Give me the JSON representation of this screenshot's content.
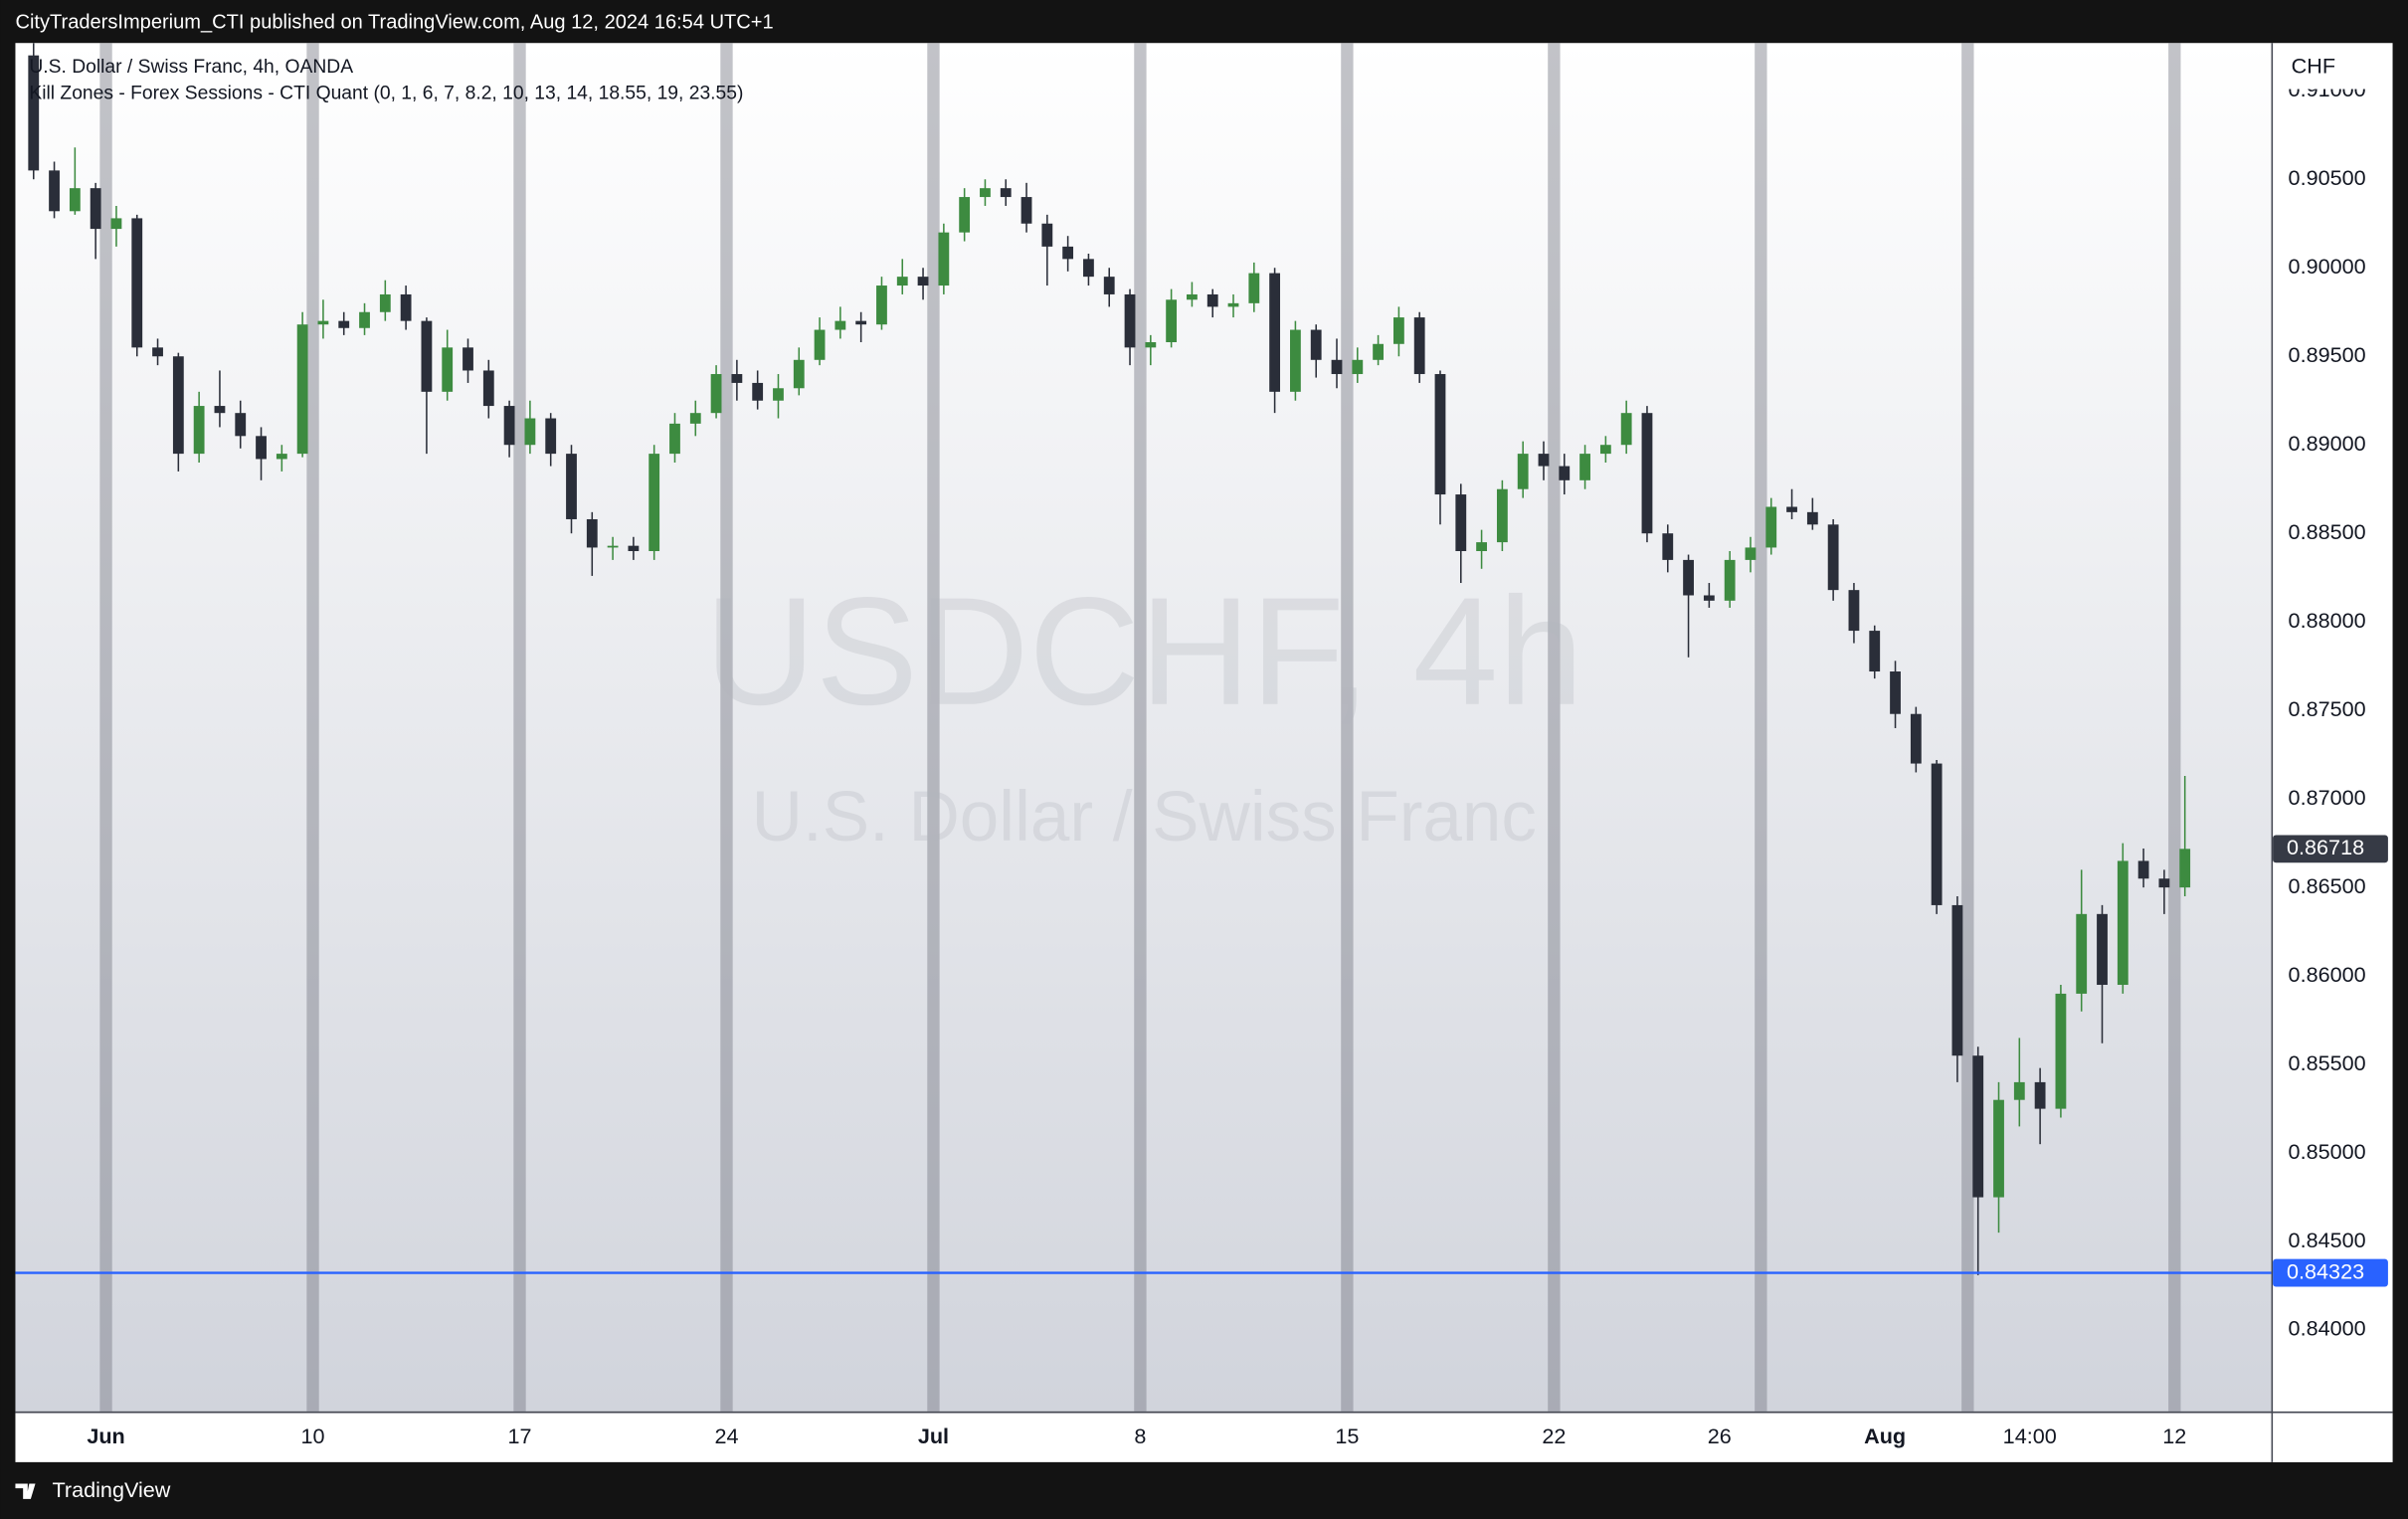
{
  "publisher": "CityTradersImperium_CTI published on TradingView.com, Aug 12, 2024 16:54 UTC+1",
  "branding": "TradingView",
  "chart_data": {
    "type": "candlestick",
    "legend": [
      "U.S. Dollar / Swiss Franc, 4h, OANDA",
      "Kill Zones - Forex Sessions - CTI Quant (0, 1, 6, 7, 8.2, 10, 13, 14, 18.55, 19, 23.55)"
    ],
    "watermark": "USDCHF, 4h",
    "watermark_subtitle": "U.S. Dollar / Swiss Franc",
    "currency": "CHF",
    "up_color": "#3d8b40",
    "down_color": "#2a2e39",
    "categories": [
      null,
      null,
      null,
      null,
      "Jun",
      null,
      null,
      null,
      null,
      null,
      null,
      null,
      null,
      null,
      "10",
      null,
      null,
      null,
      null,
      null,
      null,
      null,
      null,
      null,
      "17",
      null,
      null,
      null,
      null,
      null,
      null,
      null,
      null,
      null,
      "24",
      null,
      null,
      null,
      null,
      null,
      null,
      null,
      null,
      null,
      "Jul",
      null,
      null,
      null,
      null,
      null,
      null,
      null,
      null,
      null,
      "8",
      null,
      null,
      null,
      null,
      null,
      null,
      null,
      null,
      null,
      "15",
      null,
      null,
      null,
      null,
      null,
      null,
      null,
      null,
      null,
      "22",
      null,
      null,
      null,
      null,
      null,
      null,
      null,
      "26",
      null,
      null,
      null,
      null,
      null,
      null,
      null,
      "Aug",
      null,
      null,
      null,
      null,
      null,
      null,
      "14:00",
      null,
      null,
      null,
      null,
      null,
      null,
      "12"
    ],
    "open": [
      0.912,
      0.9055,
      0.9032,
      0.9045,
      0.9022,
      0.9028,
      0.8955,
      0.895,
      0.8895,
      0.8922,
      0.8918,
      0.8905,
      0.8892,
      0.8895,
      0.8968,
      0.897,
      0.8966,
      0.8975,
      0.8985,
      0.897,
      0.893,
      0.8955,
      0.8942,
      0.8922,
      0.89,
      0.8915,
      0.8895,
      0.8858,
      0.8842,
      0.8843,
      0.884,
      0.8895,
      0.8912,
      0.8918,
      0.894,
      0.8935,
      0.8925,
      0.8932,
      0.8948,
      0.8965,
      0.897,
      0.8968,
      0.899,
      0.8995,
      0.899,
      0.902,
      0.904,
      0.9045,
      0.904,
      0.9025,
      0.9012,
      0.9005,
      0.8995,
      0.8985,
      0.8955,
      0.8958,
      0.8982,
      0.8985,
      0.8978,
      0.898,
      0.8997,
      0.893,
      0.8965,
      0.8948,
      0.894,
      0.8948,
      0.8957,
      0.8972,
      0.894,
      0.8872,
      0.884,
      0.8845,
      0.8875,
      0.8895,
      0.8888,
      0.888,
      0.8895,
      0.89,
      0.8918,
      0.885,
      0.8835,
      0.8815,
      0.8812,
      0.8835,
      0.8842,
      0.8865,
      0.8862,
      0.8855,
      0.8818,
      0.8795,
      0.8772,
      0.8748,
      0.872,
      0.864,
      0.8555,
      0.8475,
      0.853,
      0.854,
      0.8525,
      0.859,
      0.8635,
      0.8595,
      0.8665,
      0.8655,
      0.865
    ],
    "high": [
      0.9127,
      0.906,
      0.9068,
      0.9048,
      0.9035,
      0.903,
      0.896,
      0.8952,
      0.893,
      0.8942,
      0.8925,
      0.891,
      0.89,
      0.8975,
      0.8982,
      0.8975,
      0.898,
      0.8993,
      0.899,
      0.8972,
      0.8965,
      0.896,
      0.8948,
      0.8925,
      0.8925,
      0.8918,
      0.89,
      0.8862,
      0.8848,
      0.8848,
      0.89,
      0.8918,
      0.8925,
      0.8945,
      0.8948,
      0.8942,
      0.894,
      0.8955,
      0.8972,
      0.8978,
      0.8975,
      0.8995,
      0.9005,
      0.9,
      0.9025,
      0.9045,
      0.905,
      0.905,
      0.9048,
      0.903,
      0.9018,
      0.9008,
      0.9,
      0.8988,
      0.8962,
      0.8988,
      0.8992,
      0.8988,
      0.8985,
      0.9003,
      0.9,
      0.897,
      0.8968,
      0.896,
      0.8955,
      0.8962,
      0.8978,
      0.8975,
      0.8942,
      0.8878,
      0.8852,
      0.888,
      0.8902,
      0.8902,
      0.8895,
      0.89,
      0.8905,
      0.8925,
      0.8922,
      0.8855,
      0.8838,
      0.8822,
      0.884,
      0.8848,
      0.887,
      0.8875,
      0.887,
      0.8858,
      0.8822,
      0.8798,
      0.8778,
      0.8752,
      0.8722,
      0.8645,
      0.856,
      0.854,
      0.8565,
      0.8548,
      0.8595,
      0.866,
      0.864,
      0.8675,
      0.8672,
      0.866,
      0.8713
    ],
    "low": [
      0.905,
      0.9028,
      0.903,
      0.9005,
      0.9012,
      0.895,
      0.8945,
      0.8885,
      0.889,
      0.891,
      0.8898,
      0.888,
      0.8885,
      0.8893,
      0.896,
      0.8962,
      0.8962,
      0.897,
      0.8965,
      0.8895,
      0.8925,
      0.8935,
      0.8915,
      0.8893,
      0.8895,
      0.8888,
      0.885,
      0.8826,
      0.8835,
      0.8835,
      0.8835,
      0.889,
      0.8905,
      0.8915,
      0.8925,
      0.892,
      0.8915,
      0.8928,
      0.8945,
      0.896,
      0.8958,
      0.8965,
      0.8985,
      0.8982,
      0.8985,
      0.9015,
      0.9035,
      0.9035,
      0.902,
      0.899,
      0.8998,
      0.899,
      0.8978,
      0.8945,
      0.8945,
      0.8955,
      0.8978,
      0.8972,
      0.8972,
      0.8975,
      0.8918,
      0.8925,
      0.8938,
      0.8932,
      0.8935,
      0.8945,
      0.895,
      0.8935,
      0.8855,
      0.8822,
      0.883,
      0.884,
      0.887,
      0.888,
      0.8872,
      0.8875,
      0.889,
      0.8895,
      0.8845,
      0.8828,
      0.878,
      0.8808,
      0.8808,
      0.8828,
      0.8838,
      0.8858,
      0.8852,
      0.8812,
      0.8788,
      0.8768,
      0.874,
      0.8715,
      0.8635,
      0.854,
      0.8431,
      0.8455,
      0.8515,
      0.8505,
      0.852,
      0.858,
      0.8562,
      0.859,
      0.865,
      0.8635,
      0.8645
    ],
    "close": [
      0.9055,
      0.9032,
      0.9045,
      0.9022,
      0.9028,
      0.8955,
      0.895,
      0.8895,
      0.8922,
      0.8918,
      0.8905,
      0.8892,
      0.8895,
      0.8968,
      0.897,
      0.8966,
      0.8975,
      0.8985,
      0.897,
      0.893,
      0.8955,
      0.8942,
      0.8922,
      0.89,
      0.8915,
      0.8895,
      0.8858,
      0.8842,
      0.8843,
      0.884,
      0.8895,
      0.8912,
      0.8918,
      0.894,
      0.8935,
      0.8925,
      0.8932,
      0.8948,
      0.8965,
      0.897,
      0.8968,
      0.899,
      0.8995,
      0.899,
      0.902,
      0.904,
      0.9045,
      0.904,
      0.9025,
      0.9012,
      0.9005,
      0.8995,
      0.8985,
      0.8955,
      0.8958,
      0.8982,
      0.8985,
      0.8978,
      0.898,
      0.8997,
      0.893,
      0.8965,
      0.8948,
      0.894,
      0.8948,
      0.8957,
      0.8972,
      0.894,
      0.8872,
      0.884,
      0.8845,
      0.8875,
      0.8895,
      0.8888,
      0.888,
      0.8895,
      0.89,
      0.8918,
      0.885,
      0.8835,
      0.8815,
      0.8812,
      0.8835,
      0.8842,
      0.8865,
      0.8862,
      0.8855,
      0.8818,
      0.8795,
      0.8772,
      0.8748,
      0.872,
      0.864,
      0.8555,
      0.8475,
      0.853,
      0.854,
      0.8525,
      0.859,
      0.8635,
      0.8595,
      0.8665,
      0.8655,
      0.865,
      0.86718
    ],
    "price_line": {
      "value": 0.84323,
      "color": "#2962ff"
    },
    "ylim": [
      0.8354,
      0.9127
    ],
    "yticks": [
      {
        "value": 0.84,
        "label": "0.84000"
      },
      {
        "value": 0.845,
        "label": "0.84500"
      },
      {
        "value": 0.85,
        "label": "0.85000"
      },
      {
        "value": 0.855,
        "label": "0.85500"
      },
      {
        "value": 0.86,
        "label": "0.86000"
      },
      {
        "value": 0.865,
        "label": "0.86500"
      },
      {
        "value": 0.87,
        "label": "0.87000"
      },
      {
        "value": 0.875,
        "label": "0.87500"
      },
      {
        "value": 0.88,
        "label": "0.88000"
      },
      {
        "value": 0.885,
        "label": "0.88500"
      },
      {
        "value": 0.89,
        "label": "0.89000"
      },
      {
        "value": 0.895,
        "label": "0.89500"
      },
      {
        "value": 0.9,
        "label": "0.90000"
      },
      {
        "value": 0.905,
        "label": "0.90500"
      },
      {
        "value": 0.91,
        "label": "0.91000"
      }
    ]
  }
}
